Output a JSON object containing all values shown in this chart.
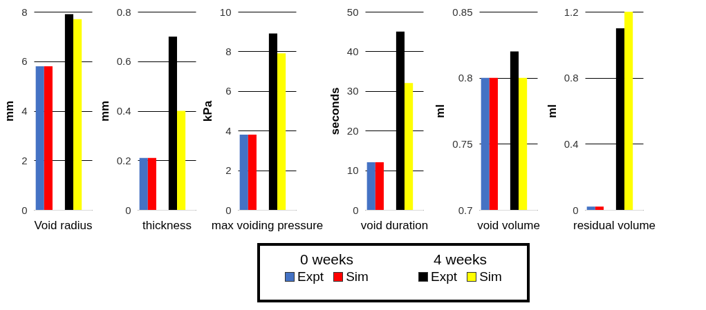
{
  "chart_data": [
    {
      "type": "bar",
      "xlabel": "Void radius",
      "ylabel": "mm",
      "categories": [
        null,
        null
      ],
      "ylim": [
        0,
        8
      ],
      "yticks": [
        0,
        2,
        4,
        6,
        8
      ],
      "grid": "y",
      "legend": "bottom",
      "annotations": [
        "0 weeks",
        "4 weeks"
      ],
      "series": [
        {
          "name": "Expt",
          "color": "#4472c4",
          "values": [
            5.8,
            null
          ]
        },
        {
          "name": "Sim",
          "color": "#ff0000",
          "values": [
            5.8,
            null
          ]
        },
        {
          "name": "Expt",
          "color": "#000000",
          "values": [
            null,
            7.9
          ]
        },
        {
          "name": "Sim",
          "color": "#ffff00",
          "values": [
            null,
            7.7
          ]
        }
      ]
    },
    {
      "type": "bar",
      "xlabel": "thickness",
      "ylabel": "mm",
      "categories": [
        null,
        null
      ],
      "ylim": [
        0,
        0.8
      ],
      "yticks": [
        0,
        0.2,
        0.4,
        0.6,
        0.8
      ],
      "grid": "y",
      "series": [
        {
          "color": "#4472c4",
          "values": [
            0.21,
            null
          ]
        },
        {
          "color": "#ff0000",
          "values": [
            0.21,
            null
          ]
        },
        {
          "color": "#000000",
          "values": [
            null,
            0.7
          ]
        },
        {
          "color": "#ffff00",
          "values": [
            null,
            0.4
          ]
        }
      ]
    },
    {
      "type": "bar",
      "xlabel": "max voiding pressure",
      "ylabel": "kPa",
      "categories": [
        null,
        null
      ],
      "ylim": [
        0,
        10
      ],
      "yticks": [
        0,
        2,
        4,
        6,
        8,
        10
      ],
      "grid": "y",
      "series": [
        {
          "color": "#4472c4",
          "values": [
            3.8,
            null
          ]
        },
        {
          "color": "#ff0000",
          "values": [
            3.8,
            null
          ]
        },
        {
          "color": "#000000",
          "values": [
            null,
            8.9
          ]
        },
        {
          "color": "#ffff00",
          "values": [
            null,
            7.9
          ]
        }
      ]
    },
    {
      "type": "bar",
      "xlabel": "void duration",
      "ylabel": "seconds",
      "categories": [
        null,
        null
      ],
      "ylim": [
        0,
        50
      ],
      "yticks": [
        0,
        10,
        20,
        30,
        40,
        50
      ],
      "grid": "y",
      "series": [
        {
          "color": "#4472c4",
          "values": [
            12,
            null
          ]
        },
        {
          "color": "#ff0000",
          "values": [
            12,
            null
          ]
        },
        {
          "color": "#000000",
          "values": [
            null,
            45
          ]
        },
        {
          "color": "#ffff00",
          "values": [
            null,
            32
          ]
        }
      ]
    },
    {
      "type": "bar",
      "xlabel": "void volume",
      "ylabel": "ml",
      "categories": [
        null,
        null
      ],
      "ylim": [
        0.7,
        0.85
      ],
      "yticks": [
        0.7,
        0.75,
        0.8,
        0.85
      ],
      "grid": "y",
      "series": [
        {
          "color": "#4472c4",
          "values": [
            0.8,
            null
          ]
        },
        {
          "color": "#ff0000",
          "values": [
            0.8,
            null
          ]
        },
        {
          "color": "#000000",
          "values": [
            null,
            0.82
          ]
        },
        {
          "color": "#ffff00",
          "values": [
            null,
            0.8
          ]
        }
      ]
    },
    {
      "type": "bar",
      "xlabel": "residual volume",
      "ylabel": "ml",
      "categories": [
        null,
        null
      ],
      "ylim": [
        0,
        1.2
      ],
      "yticks": [
        0,
        0.4,
        0.8,
        1.2
      ],
      "grid": "y",
      "series": [
        {
          "color": "#4472c4",
          "values": [
            0.02,
            null
          ]
        },
        {
          "color": "#ff0000",
          "values": [
            0.02,
            null
          ]
        },
        {
          "color": "#000000",
          "values": [
            null,
            1.1
          ]
        },
        {
          "color": "#ffff00",
          "values": [
            null,
            1.2
          ]
        }
      ]
    }
  ]
}
